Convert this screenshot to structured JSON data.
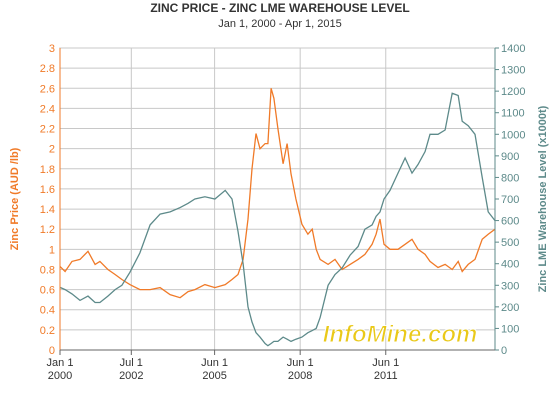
{
  "chart_data": {
    "type": "line",
    "title": "ZINC PRICE - ZINC LME WAREHOUSE LEVEL",
    "subtitle": "Jan 1, 2000 - Apr 1, 2015",
    "y_label": "Zinc Price (AUD /lb)",
    "y2_label": "Zinc LME Warehouse Level (x1000t)",
    "watermark": "InfoMine.com",
    "grid": true,
    "x": [
      2000.0,
      2000.18,
      2000.42,
      2000.7,
      2000.98,
      2001.23,
      2001.4,
      2001.68,
      2001.93,
      2002.17,
      2002.45,
      2002.8,
      2003.16,
      2003.51,
      2003.86,
      2004.21,
      2004.49,
      2004.73,
      2005.08,
      2005.43,
      2005.79,
      2006.03,
      2006.24,
      2006.42,
      2006.59,
      2006.73,
      2006.87,
      2007.01,
      2007.19,
      2007.29,
      2007.4,
      2007.5,
      2007.64,
      2007.82,
      2007.96,
      2008.1,
      2008.27,
      2008.48,
      2008.69,
      2008.84,
      2008.98,
      2009.12,
      2009.4,
      2009.64,
      2009.89,
      2010.17,
      2010.45,
      2010.69,
      2010.94,
      2011.08,
      2011.22,
      2011.36,
      2011.57,
      2011.85,
      2012.1,
      2012.34,
      2012.55,
      2012.8,
      2012.97,
      2013.25,
      2013.5,
      2013.75,
      2013.96,
      2014.1,
      2014.31,
      2014.55,
      2014.8,
      2015.01,
      2015.25
    ],
    "series": [
      {
        "name": "Zinc Price",
        "color": "#f07a28",
        "axis": "y",
        "values": [
          0.83,
          0.78,
          0.88,
          0.9,
          0.98,
          0.85,
          0.88,
          0.8,
          0.75,
          0.7,
          0.65,
          0.6,
          0.6,
          0.62,
          0.55,
          0.52,
          0.58,
          0.6,
          0.65,
          0.62,
          0.65,
          0.7,
          0.75,
          0.9,
          1.3,
          1.8,
          2.15,
          2.0,
          2.05,
          2.05,
          2.6,
          2.5,
          2.2,
          1.85,
          2.05,
          1.75,
          1.5,
          1.25,
          1.15,
          1.2,
          1.0,
          0.9,
          0.85,
          0.9,
          0.8,
          0.85,
          0.9,
          0.95,
          1.05,
          1.15,
          1.3,
          1.05,
          1.0,
          1.0,
          1.05,
          1.1,
          1.0,
          0.95,
          0.88,
          0.82,
          0.85,
          0.8,
          0.88,
          0.78,
          0.85,
          0.9,
          1.1,
          1.15,
          1.2
        ]
      },
      {
        "name": "Zinc LME Warehouse Level",
        "color": "#5d8a8a",
        "axis": "y2",
        "values": [
          290,
          280,
          260,
          230,
          250,
          220,
          220,
          250,
          280,
          300,
          360,
          450,
          580,
          630,
          640,
          660,
          680,
          700,
          710,
          700,
          740,
          700,
          550,
          400,
          200,
          130,
          80,
          60,
          30,
          20,
          30,
          40,
          40,
          60,
          50,
          40,
          50,
          60,
          80,
          90,
          100,
          150,
          300,
          350,
          380,
          440,
          480,
          560,
          580,
          620,
          640,
          700,
          740,
          820,
          890,
          820,
          860,
          920,
          1000,
          1000,
          1020,
          1190,
          1180,
          1060,
          1040,
          1000,
          800,
          640,
          600
        ]
      }
    ],
    "xlim": [
      2000,
      2015.25
    ],
    "xticks": [
      {
        "value": 2000,
        "label": "Jan 1\n2000"
      },
      {
        "value": 2002.5,
        "label": "Jul 1\n2002"
      },
      {
        "value": 2005.42,
        "label": "Jun 1\n2005"
      },
      {
        "value": 2008.42,
        "label": "Jun 1\n2008"
      },
      {
        "value": 2011.42,
        "label": "Jun 1\n2011"
      }
    ],
    "ylim": [
      0,
      3
    ],
    "yticks": [
      0,
      0.2,
      0.4,
      0.6,
      0.8,
      1,
      1.2,
      1.4,
      1.6,
      1.8,
      2,
      2.2,
      2.4,
      2.6,
      2.8,
      3
    ],
    "y2lim": [
      0,
      1400
    ],
    "y2ticks": [
      0,
      100,
      200,
      300,
      400,
      500,
      600,
      700,
      800,
      900,
      1000,
      1100,
      1200,
      1300,
      1400
    ]
  }
}
